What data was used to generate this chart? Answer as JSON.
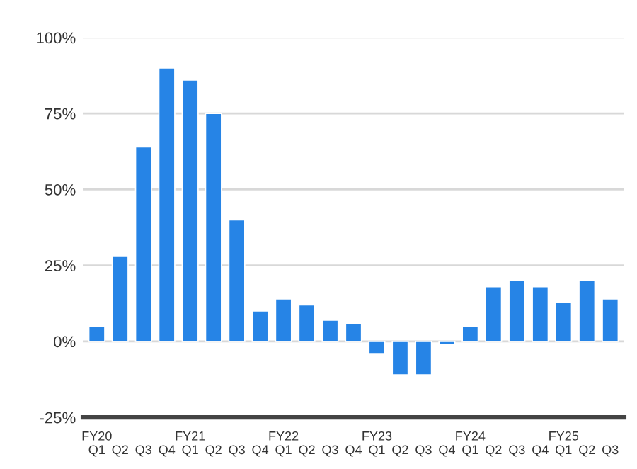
{
  "chart_data": {
    "type": "bar",
    "categories": [
      "FY20\nQ1",
      "Q2",
      "Q3",
      "Q4",
      "FY21\nQ1",
      "Q2",
      "Q3",
      "Q4",
      "FY22\nQ1",
      "Q2",
      "Q3",
      "Q4",
      "FY23\nQ1",
      "Q2",
      "Q3",
      "Q4",
      "FY24\nQ1",
      "Q2",
      "Q3",
      "Q4",
      "FY25\nQ1",
      "Q2",
      "Q3"
    ],
    "values": [
      5,
      28,
      64,
      90,
      86,
      75,
      40,
      10,
      14,
      12,
      7,
      6,
      -4,
      -11,
      -11,
      -1,
      5,
      18,
      20,
      18,
      13,
      20,
      14
    ],
    "color": "#2684e6",
    "ylim": [
      -25,
      100
    ],
    "yticks": [
      {
        "value": -25,
        "label": "-25%"
      },
      {
        "value": 0,
        "label": "0%"
      },
      {
        "value": 25,
        "label": "25%"
      },
      {
        "value": 50,
        "label": "50%"
      },
      {
        "value": 75,
        "label": "75%"
      },
      {
        "value": 100,
        "label": "100%"
      }
    ],
    "grid": "y"
  }
}
